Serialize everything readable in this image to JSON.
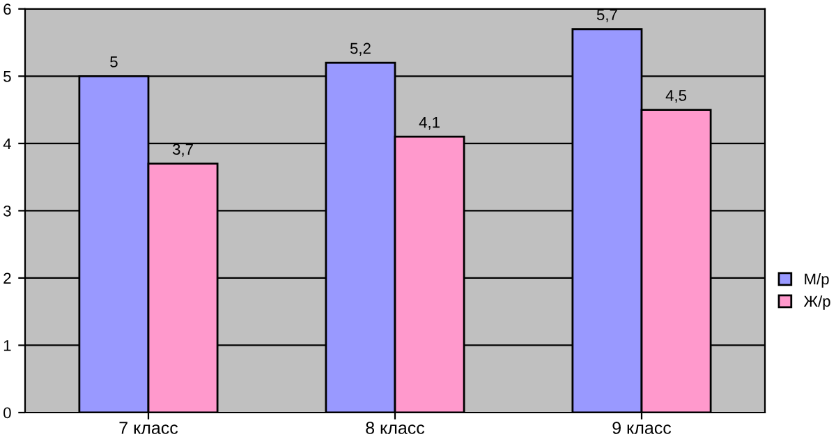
{
  "chart_data": {
    "type": "bar",
    "categories": [
      "7 класс",
      "8 класс",
      "9 класс"
    ],
    "series": [
      {
        "name": "М/р",
        "color": "#9999ff",
        "values": [
          5,
          5.2,
          5.7
        ]
      },
      {
        "name": "Ж/р",
        "color": "#ff99cc",
        "values": [
          3.7,
          4.1,
          4.5
        ]
      }
    ],
    "value_labels": [
      [
        "5",
        "5,2",
        "5,7"
      ],
      [
        "3,7",
        "4,1",
        "4,5"
      ]
    ],
    "ylim": [
      0,
      6
    ],
    "yticks": [
      0,
      1,
      2,
      3,
      4,
      5,
      6
    ],
    "grid": "y",
    "legend": "right"
  }
}
